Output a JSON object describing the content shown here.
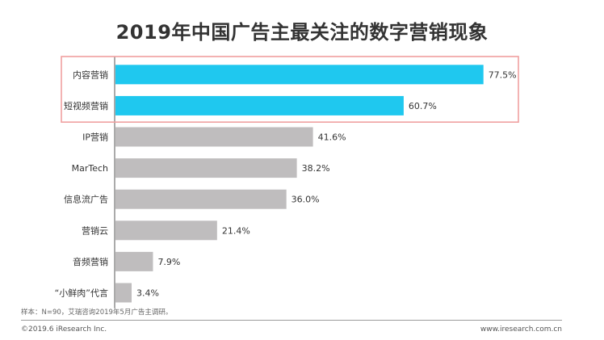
{
  "title": "2019年中国广告主最关注的数字营销现象",
  "chart_data": {
    "type": "bar",
    "orientation": "horizontal",
    "title": "2019年中国广告主最关注的数字营销现象",
    "categories": [
      "内容营销",
      "短视频营销",
      "IP营销",
      "MarTech",
      "信息流广告",
      "营销云",
      "音频营销",
      "“小鲜肉”代言"
    ],
    "values": [
      77.5,
      60.7,
      41.6,
      38.2,
      36.0,
      21.4,
      7.9,
      3.4
    ],
    "value_labels": [
      "77.5%",
      "60.7%",
      "41.6%",
      "38.2%",
      "36.0%",
      "21.4%",
      "7.9%",
      "3.4%"
    ],
    "xlim": [
      0,
      100
    ],
    "grid": false,
    "highlighted_categories": [
      "内容营销",
      "短视频营销"
    ],
    "colors": {
      "highlight": "#1fc8ef",
      "normal": "#bfbdbe",
      "box": "#f0a0a0",
      "axis": "#555555"
    }
  },
  "footer": {
    "note": "样本：N=90，艾瑞咨询2019年5月广告主调研。",
    "copyright": "©2019.6 iResearch Inc.",
    "website": "www.iresearch.com.cn"
  }
}
